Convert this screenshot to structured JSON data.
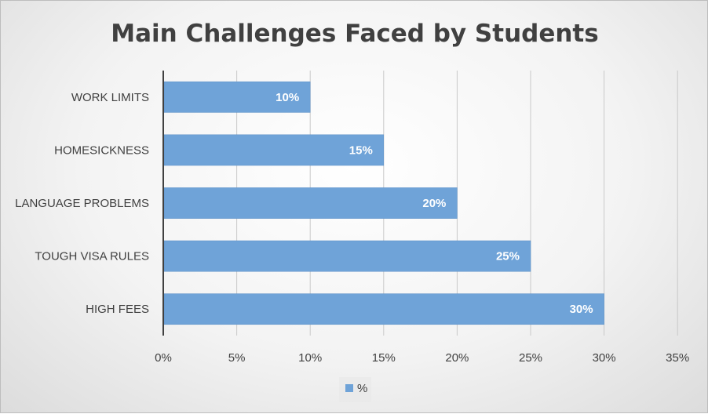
{
  "chart_data": {
    "type": "bar",
    "orientation": "horizontal",
    "title": "Main Challenges Faced by Students",
    "categories": [
      "WORK LIMITS",
      "HOMESICKNESS",
      "LANGUAGE PROBLEMS",
      "TOUGH VISA RULES",
      "HIGH FEES"
    ],
    "series": [
      {
        "name": "%",
        "values": [
          10,
          15,
          20,
          25,
          30
        ],
        "color": "#6fa3d8"
      }
    ],
    "data_labels": [
      "10%",
      "15%",
      "20%",
      "25%",
      "30%"
    ],
    "x_ticks": [
      "0%",
      "5%",
      "10%",
      "15%",
      "20%",
      "25%",
      "30%",
      "35%"
    ],
    "xlim": [
      0,
      35
    ],
    "grid": true,
    "legend": "bottom"
  }
}
